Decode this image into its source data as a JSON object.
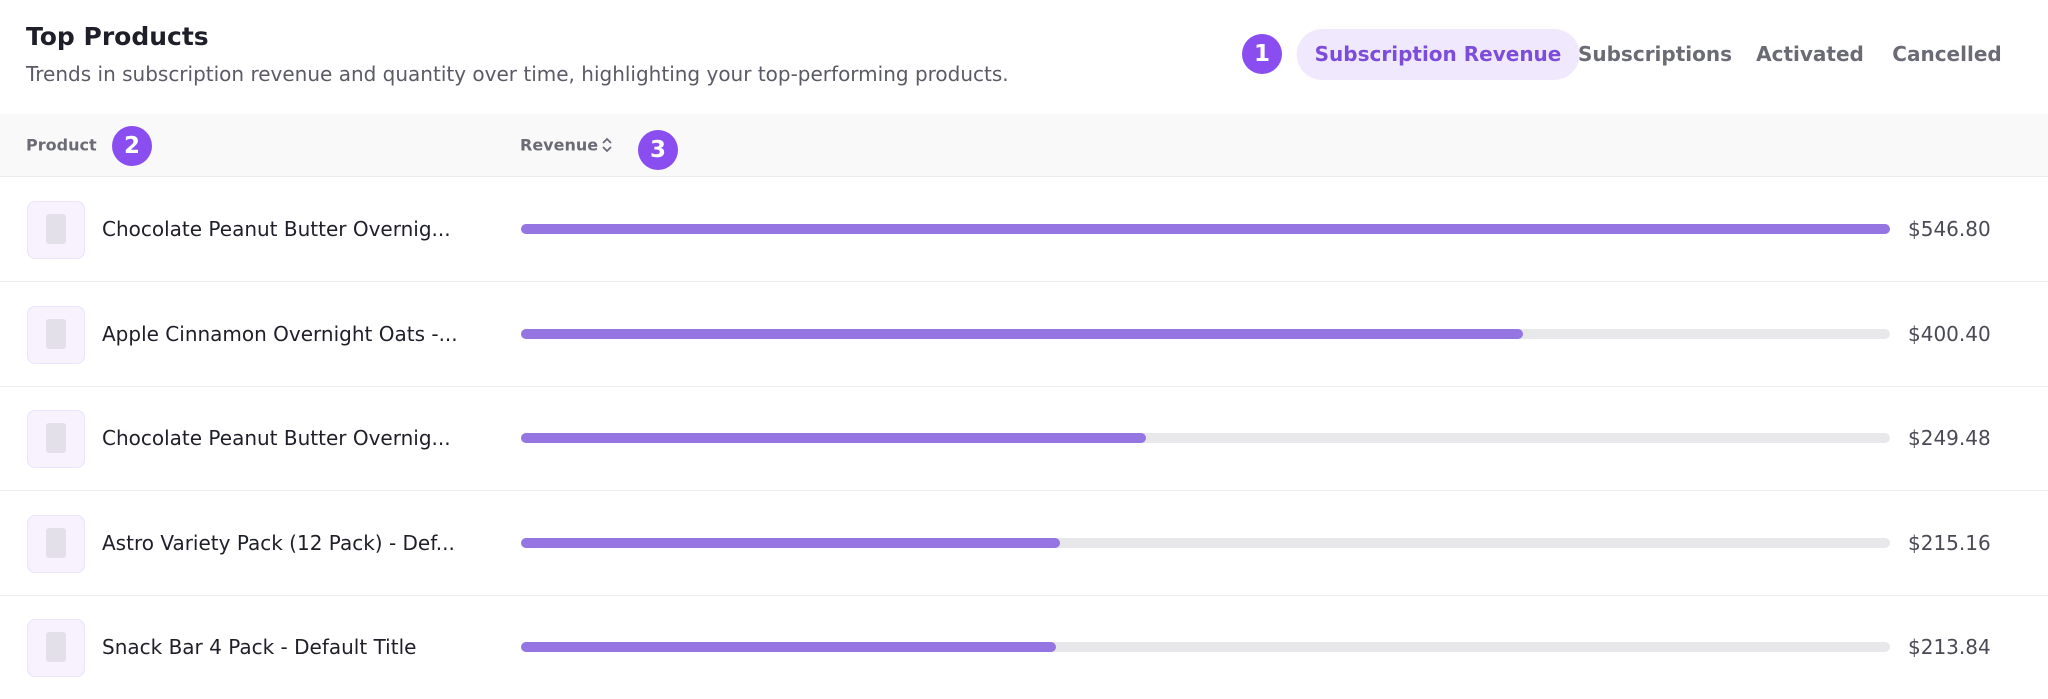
{
  "header": {
    "title": "Top Products",
    "subtitle": "Trends in subscription revenue and quantity over time, highlighting your top-performing products."
  },
  "tabs": [
    "Subscription Revenue",
    "Subscriptions",
    "Activated",
    "Cancelled"
  ],
  "badges": [
    "1",
    "2",
    "3"
  ],
  "table": {
    "columns": [
      "Product",
      "Revenue"
    ],
    "rows": [
      {
        "product": "Chocolate Peanut Butter Overnig...",
        "revenue": 546.8,
        "revenue_label": "$546.80"
      },
      {
        "product": "Apple Cinnamon Overnight Oats -...",
        "revenue": 400.4,
        "revenue_label": "$400.40"
      },
      {
        "product": "Chocolate Peanut Butter Overnig...",
        "revenue": 249.48,
        "revenue_label": "$249.48"
      },
      {
        "product": "Astro Variety Pack (12 Pack) - Def...",
        "revenue": 215.16,
        "revenue_label": "$215.16"
      },
      {
        "product": "Snack Bar 4 Pack - Default Title",
        "revenue": 213.84,
        "revenue_label": "$213.84"
      }
    ]
  }
}
